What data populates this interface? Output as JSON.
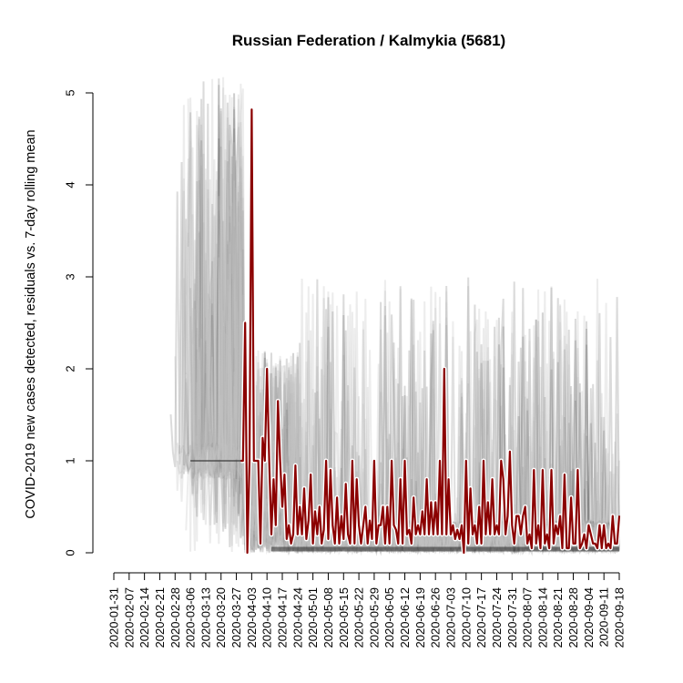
{
  "chart_data": {
    "type": "line",
    "title": "Russian Federation / Kalmykia (5681)",
    "xlabel": "",
    "ylabel": "COVID-2019 new cases detected, residuals vs. 7-day rolling mean",
    "ylim": [
      0,
      5
    ],
    "y_ticks": [
      0,
      1,
      2,
      3,
      4,
      5
    ],
    "x_start": "2020-01-31",
    "x_end": "2020-09-18",
    "x_tick_labels": [
      "2020-01-31",
      "2020-02-07",
      "2020-02-14",
      "2020-02-21",
      "2020-02-28",
      "2020-03-06",
      "2020-03-13",
      "2020-03-20",
      "2020-03-27",
      "2020-04-03",
      "2020-04-10",
      "2020-04-17",
      "2020-04-24",
      "2020-05-01",
      "2020-05-08",
      "2020-05-15",
      "2020-05-22",
      "2020-05-29",
      "2020-06-05",
      "2020-06-12",
      "2020-06-19",
      "2020-06-26",
      "2020-07-03",
      "2020-07-10",
      "2020-07-17",
      "2020-07-24",
      "2020-07-31",
      "2020-08-07",
      "2020-08-14",
      "2020-08-21",
      "2020-08-28",
      "2020-09-04",
      "2020-09-11",
      "2020-09-18"
    ],
    "series": [
      {
        "name": "Kalmykia",
        "color": "#8b0000",
        "x": [
          "2020-03-29",
          "2020-03-30",
          "2020-03-31",
          "2020-04-01",
          "2020-04-02",
          "2020-04-03",
          "2020-04-04",
          "2020-04-05",
          "2020-04-06",
          "2020-04-07",
          "2020-04-08",
          "2020-04-09",
          "2020-04-10",
          "2020-04-11",
          "2020-04-12",
          "2020-04-13",
          "2020-04-14",
          "2020-04-15",
          "2020-04-16",
          "2020-04-17",
          "2020-04-18",
          "2020-04-19",
          "2020-04-20",
          "2020-04-21",
          "2020-04-22",
          "2020-04-23",
          "2020-04-24",
          "2020-04-25",
          "2020-04-26",
          "2020-04-27",
          "2020-04-28",
          "2020-04-29",
          "2020-04-30",
          "2020-05-01",
          "2020-05-02",
          "2020-05-03",
          "2020-05-04",
          "2020-05-05",
          "2020-05-06",
          "2020-05-07",
          "2020-05-08",
          "2020-05-09",
          "2020-05-10",
          "2020-05-11",
          "2020-05-12",
          "2020-05-13",
          "2020-05-14",
          "2020-05-15",
          "2020-05-16",
          "2020-05-17",
          "2020-05-18",
          "2020-05-19",
          "2020-05-20",
          "2020-05-21",
          "2020-05-22",
          "2020-05-23",
          "2020-05-24",
          "2020-05-25",
          "2020-05-26",
          "2020-05-27",
          "2020-05-28",
          "2020-05-29",
          "2020-05-30",
          "2020-05-31",
          "2020-06-01",
          "2020-06-02",
          "2020-06-03",
          "2020-06-04",
          "2020-06-05",
          "2020-06-06",
          "2020-06-07",
          "2020-06-08",
          "2020-06-09",
          "2020-06-10",
          "2020-06-11",
          "2020-06-12",
          "2020-06-13",
          "2020-06-14",
          "2020-06-15",
          "2020-06-16",
          "2020-06-17",
          "2020-06-18",
          "2020-06-19",
          "2020-06-20",
          "2020-06-21",
          "2020-06-22",
          "2020-06-23",
          "2020-06-24",
          "2020-06-25",
          "2020-06-26",
          "2020-06-27",
          "2020-06-28",
          "2020-06-29",
          "2020-06-30",
          "2020-07-01",
          "2020-07-02",
          "2020-07-03",
          "2020-07-04",
          "2020-07-05",
          "2020-07-06",
          "2020-07-07",
          "2020-07-08",
          "2020-07-09",
          "2020-07-10",
          "2020-07-11",
          "2020-07-12",
          "2020-07-13",
          "2020-07-14",
          "2020-07-15",
          "2020-07-16",
          "2020-07-17",
          "2020-07-18",
          "2020-07-19",
          "2020-07-20",
          "2020-07-21",
          "2020-07-22",
          "2020-07-23",
          "2020-07-24",
          "2020-07-25",
          "2020-07-26",
          "2020-07-27",
          "2020-07-28",
          "2020-07-29",
          "2020-07-30",
          "2020-07-31",
          "2020-08-01",
          "2020-08-02",
          "2020-08-03",
          "2020-08-04",
          "2020-08-05",
          "2020-08-06",
          "2020-08-07",
          "2020-08-08",
          "2020-08-09",
          "2020-08-10",
          "2020-08-11",
          "2020-08-12",
          "2020-08-13",
          "2020-08-14",
          "2020-08-15",
          "2020-08-16",
          "2020-08-17",
          "2020-08-18",
          "2020-08-19",
          "2020-08-20",
          "2020-08-21",
          "2020-08-22",
          "2020-08-23",
          "2020-08-24",
          "2020-08-25",
          "2020-08-26",
          "2020-08-27",
          "2020-08-28",
          "2020-08-29",
          "2020-08-30",
          "2020-08-31",
          "2020-09-01",
          "2020-09-02",
          "2020-09-03",
          "2020-09-04",
          "2020-09-05",
          "2020-09-06",
          "2020-09-07",
          "2020-09-08",
          "2020-09-09",
          "2020-09-10",
          "2020-09-11",
          "2020-09-12",
          "2020-09-13",
          "2020-09-14",
          "2020-09-15",
          "2020-09-16",
          "2020-09-17",
          "2020-09-18"
        ],
        "values": [
          1.0,
          1.0,
          2.5,
          0.0,
          1.0,
          4.82,
          1.0,
          1.0,
          1.0,
          0.1,
          1.25,
          1.0,
          2.0,
          1.0,
          0.2,
          0.8,
          0.3,
          1.65,
          1.0,
          0.5,
          0.85,
          0.15,
          0.3,
          0.1,
          0.2,
          0.95,
          0.2,
          0.5,
          0.2,
          0.7,
          0.15,
          0.35,
          0.85,
          0.1,
          0.45,
          0.2,
          0.5,
          0.1,
          0.25,
          1.0,
          0.15,
          0.9,
          0.3,
          0.1,
          0.6,
          0.1,
          0.4,
          0.15,
          0.75,
          0.2,
          0.1,
          1.0,
          0.1,
          0.8,
          0.3,
          0.1,
          0.3,
          0.5,
          0.1,
          0.35,
          0.15,
          1.0,
          0.1,
          0.3,
          0.3,
          0.5,
          0.1,
          0.5,
          0.1,
          1.0,
          0.3,
          0.25,
          0.1,
          0.8,
          0.1,
          1.0,
          0.2,
          0.25,
          0.1,
          0.6,
          0.2,
          0.3,
          0.2,
          0.45,
          0.2,
          0.8,
          0.2,
          0.55,
          0.2,
          0.55,
          0.2,
          1.0,
          0.2,
          2.0,
          0.2,
          0.8,
          0.2,
          0.3,
          0.15,
          0.25,
          0.15,
          0.3,
          0.0,
          1.0,
          0.1,
          0.7,
          0.2,
          0.3,
          0.1,
          0.5,
          0.1,
          1.0,
          0.2,
          0.55,
          0.2,
          0.8,
          0.2,
          0.3,
          0.2,
          1.0,
          0.8,
          0.2,
          0.4,
          1.1,
          0.3,
          0.1,
          0.4,
          0.4,
          0.2,
          0.4,
          0.5,
          0.1,
          0.2,
          0.05,
          0.9,
          0.1,
          0.3,
          0.05,
          0.9,
          0.1,
          0.2,
          0.05,
          0.9,
          0.1,
          0.3,
          0.2,
          0.4,
          0.05,
          0.85,
          0.05,
          0.05,
          0.6,
          0.1,
          0.1,
          0.9,
          0.05,
          0.1,
          0.2,
          0.05,
          0.3,
          0.2,
          0.1,
          0.1,
          0.05,
          0.3,
          0.05,
          0.3,
          0.05,
          0.1,
          0.05,
          0.4,
          0.1,
          0.1,
          0.4
        ]
      }
    ],
    "background_note": "Faint grey/black overlay of residual series for other regions"
  }
}
